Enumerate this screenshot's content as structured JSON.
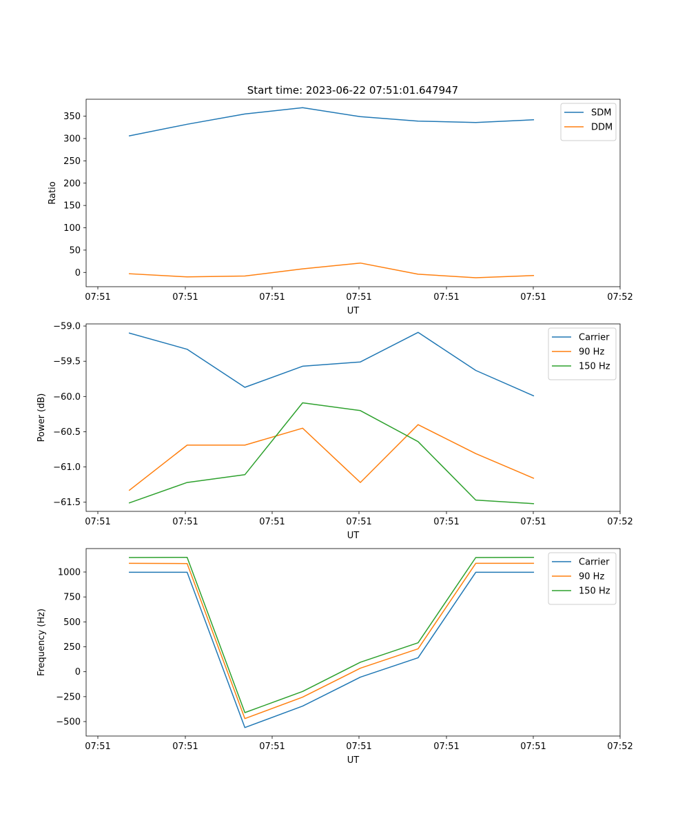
{
  "figure": {
    "title": "Start time: 2023-06-22 07:51:01.647947"
  },
  "chart_data": [
    {
      "type": "line",
      "xlabel": "UT",
      "ylabel": "Ratio",
      "x_tick_labels": [
        "07:51",
        "07:51",
        "07:51",
        "07:51",
        "07:51",
        "07:51",
        "07:52"
      ],
      "x": [
        1,
        2,
        3,
        4,
        5,
        6,
        7,
        8
      ],
      "xlim": [
        0.25,
        9.5
      ],
      "ylim": [
        -32,
        388
      ],
      "yticks": [
        0,
        50,
        100,
        150,
        200,
        250,
        300,
        350
      ],
      "ytick_labels": [
        "0",
        "50",
        "100",
        "150",
        "200",
        "250",
        "300",
        "350"
      ],
      "legend_position": "top-right",
      "series": [
        {
          "name": "SDM",
          "color": "#1f77b4",
          "values": [
            306,
            332,
            355,
            369,
            349,
            339,
            336,
            342
          ]
        },
        {
          "name": "DDM",
          "color": "#ff7f0e",
          "values": [
            -3,
            -10,
            -8,
            8,
            21,
            -4,
            -12,
            -7
          ]
        }
      ]
    },
    {
      "type": "line",
      "xlabel": "UT",
      "ylabel": "Power (dB)",
      "x_tick_labels": [
        "07:51",
        "07:51",
        "07:51",
        "07:51",
        "07:51",
        "07:51",
        "07:52"
      ],
      "x": [
        1,
        2,
        3,
        4,
        5,
        6,
        7,
        8
      ],
      "xlim": [
        0.25,
        9.5
      ],
      "ylim": [
        -61.63,
        -58.97
      ],
      "yticks": [
        -61.5,
        -61.0,
        -60.5,
        -60.0,
        -59.5,
        -59.0
      ],
      "ytick_labels": [
        "−61.5",
        "−61.0",
        "−60.5",
        "−60.0",
        "−59.5",
        "−59.0"
      ],
      "legend_position": "top-right",
      "series": [
        {
          "name": "Carrier",
          "color": "#1f77b4",
          "values": [
            -59.1,
            -59.33,
            -59.87,
            -59.57,
            -59.51,
            -59.09,
            -59.63,
            -59.99
          ]
        },
        {
          "name": "90 Hz",
          "color": "#ff7f0e",
          "values": [
            -61.33,
            -60.69,
            -60.69,
            -60.45,
            -61.22,
            -60.4,
            -60.81,
            -61.16
          ]
        },
        {
          "name": "150 Hz",
          "color": "#2ca02c",
          "values": [
            -61.51,
            -61.22,
            -61.11,
            -60.09,
            -60.2,
            -60.64,
            -61.47,
            -61.52
          ]
        }
      ]
    },
    {
      "type": "line",
      "xlabel": "UT",
      "ylabel": "Frequency (Hz)",
      "x_tick_labels": [
        "07:51",
        "07:51",
        "07:51",
        "07:51",
        "07:51",
        "07:51",
        "07:52"
      ],
      "x": [
        1,
        2,
        3,
        4,
        5,
        6,
        7,
        8
      ],
      "xlim": [
        0.25,
        9.5
      ],
      "ylim": [
        -645,
        1235
      ],
      "yticks": [
        -500,
        -250,
        0,
        250,
        500,
        750,
        1000
      ],
      "ytick_labels": [
        "−500",
        "−250",
        "0",
        "250",
        "500",
        "750",
        "1000"
      ],
      "legend_position": "top-right",
      "series": [
        {
          "name": "Carrier",
          "color": "#1f77b4",
          "values": [
            997,
            997,
            -560,
            -345,
            -55,
            140,
            997,
            997
          ]
        },
        {
          "name": "90 Hz",
          "color": "#ff7f0e",
          "values": [
            1087,
            1085,
            -470,
            -255,
            35,
            230,
            1087,
            1087
          ]
        },
        {
          "name": "150 Hz",
          "color": "#2ca02c",
          "values": [
            1145,
            1147,
            -410,
            -198,
            95,
            290,
            1145,
            1147
          ]
        }
      ]
    }
  ]
}
